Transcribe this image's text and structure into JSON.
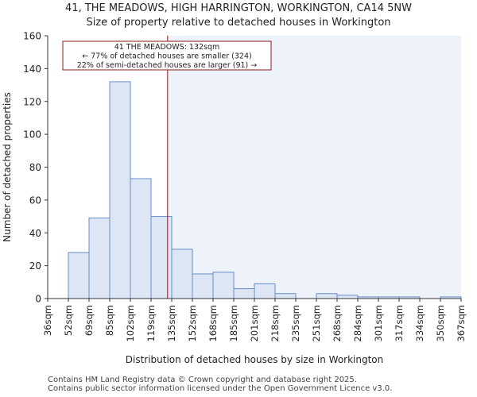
{
  "chart_data": {
    "type": "bar",
    "title": "41, THE MEADOWS, HIGH HARRINGTON, WORKINGTON, CA14 5NW",
    "subtitle": "Size of property relative to detached houses in Workington",
    "xlabel": "Distribution of detached houses by size in Workington",
    "ylabel": "Number of detached properties",
    "bin_edges": [
      36,
      52,
      69,
      85,
      102,
      119,
      135,
      152,
      168,
      185,
      201,
      218,
      235,
      251,
      268,
      284,
      301,
      317,
      334,
      350,
      367
    ],
    "tick_labels": [
      "36sqm",
      "52sqm",
      "69sqm",
      "85sqm",
      "102sqm",
      "119sqm",
      "135sqm",
      "152sqm",
      "168sqm",
      "185sqm",
      "201sqm",
      "218sqm",
      "235sqm",
      "251sqm",
      "268sqm",
      "284sqm",
      "301sqm",
      "317sqm",
      "334sqm",
      "350sqm",
      "367sqm"
    ],
    "values": [
      0,
      28,
      49,
      132,
      73,
      50,
      30,
      15,
      16,
      6,
      9,
      3,
      0,
      3,
      2,
      1,
      1,
      1,
      0,
      1
    ],
    "ylim": [
      0,
      160
    ],
    "yticks": [
      0,
      20,
      40,
      60,
      80,
      100,
      120,
      140,
      160
    ],
    "marker": {
      "value": 132,
      "line1": "41 THE MEADOWS: 132sqm",
      "line2": "← 77% of detached houses are smaller (324)",
      "line3": "22% of semi-detached houses are larger (91) →"
    },
    "colors": {
      "bar_fill": "#dce6f5",
      "bar_stroke": "#6a8cc8",
      "marker": "#8b1a1a",
      "highlight_bg": "#eef2fb"
    }
  },
  "footer": {
    "line1": "Contains HM Land Registry data © Crown copyright and database right 2025.",
    "line2": "Contains public sector information licensed under the Open Government Licence v3.0."
  }
}
